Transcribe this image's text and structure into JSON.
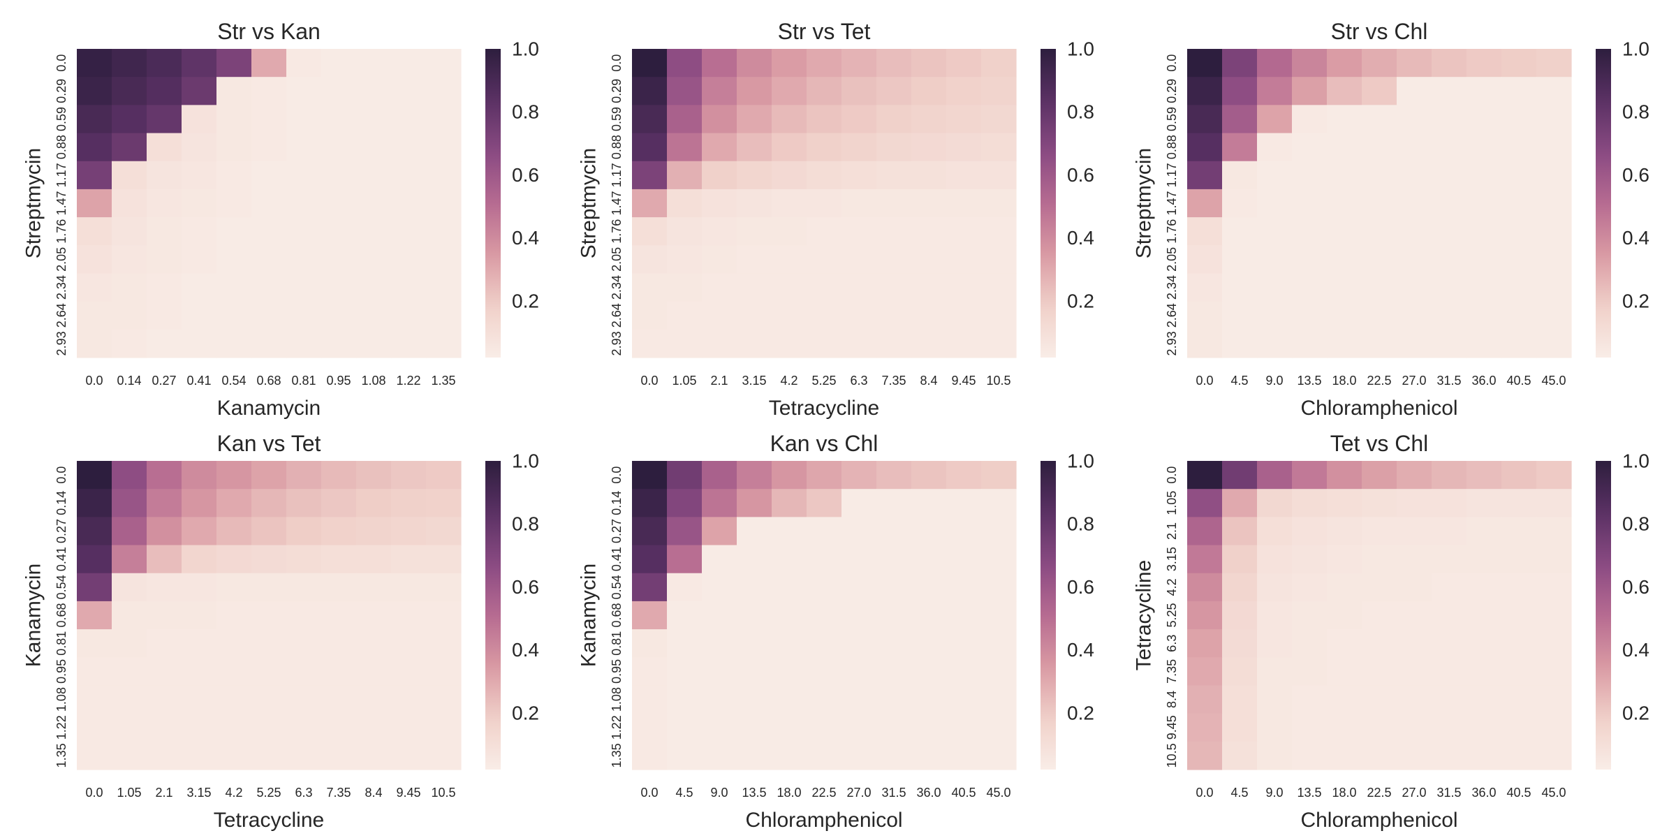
{
  "colorscale": {
    "stops": [
      "#f9ede7",
      "#f0d0c9",
      "#d99aa3",
      "#b66b91",
      "#8a4a82",
      "#5a3164",
      "#2d1e3e"
    ]
  },
  "chart_data": [
    {
      "type": "heatmap",
      "title": "Str vs Kan",
      "xlabel": "Kanamycin",
      "ylabel": "Streptmycin",
      "x_ticks": [
        "0.0",
        "0.14",
        "0.27",
        "0.41",
        "0.54",
        "0.68",
        "0.81",
        "0.95",
        "1.08",
        "1.22",
        "1.35"
      ],
      "y_ticks": [
        "0.0",
        "0.29",
        "0.59",
        "0.88",
        "1.17",
        "1.47",
        "1.76",
        "2.05",
        "2.34",
        "2.64",
        "2.93"
      ],
      "colorbar_ticks": [
        "1.0",
        "0.8",
        "0.6",
        "0.4",
        "0.2"
      ],
      "clim": [
        0.02,
        1.0
      ],
      "values": [
        [
          0.97,
          0.93,
          0.89,
          0.82,
          0.72,
          0.3,
          0.04,
          0.03,
          0.03,
          0.03,
          0.03
        ],
        [
          0.95,
          0.9,
          0.86,
          0.78,
          0.05,
          0.04,
          0.03,
          0.03,
          0.03,
          0.03,
          0.03
        ],
        [
          0.9,
          0.85,
          0.8,
          0.08,
          0.05,
          0.04,
          0.03,
          0.03,
          0.03,
          0.03,
          0.03
        ],
        [
          0.85,
          0.78,
          0.1,
          0.07,
          0.05,
          0.04,
          0.03,
          0.03,
          0.03,
          0.03,
          0.03
        ],
        [
          0.74,
          0.1,
          0.07,
          0.06,
          0.04,
          0.03,
          0.03,
          0.03,
          0.03,
          0.03,
          0.03
        ],
        [
          0.32,
          0.08,
          0.06,
          0.05,
          0.04,
          0.03,
          0.03,
          0.03,
          0.03,
          0.03,
          0.03
        ],
        [
          0.1,
          0.07,
          0.05,
          0.04,
          0.03,
          0.03,
          0.03,
          0.03,
          0.03,
          0.03,
          0.03
        ],
        [
          0.08,
          0.06,
          0.05,
          0.04,
          0.03,
          0.03,
          0.03,
          0.03,
          0.03,
          0.03,
          0.03
        ],
        [
          0.06,
          0.05,
          0.04,
          0.03,
          0.03,
          0.03,
          0.03,
          0.03,
          0.03,
          0.03,
          0.03
        ],
        [
          0.05,
          0.05,
          0.04,
          0.03,
          0.03,
          0.03,
          0.03,
          0.03,
          0.03,
          0.03,
          0.03
        ],
        [
          0.05,
          0.04,
          0.03,
          0.03,
          0.03,
          0.03,
          0.03,
          0.03,
          0.03,
          0.03,
          0.03
        ]
      ]
    },
    {
      "type": "heatmap",
      "title": "Str vs Tet",
      "xlabel": "Tetracycline",
      "ylabel": "Streptmycin",
      "x_ticks": [
        "0.0",
        "1.05",
        "2.1",
        "3.15",
        "4.2",
        "5.25",
        "6.3",
        "7.35",
        "8.4",
        "9.45",
        "10.5"
      ],
      "y_ticks": [
        "0.0",
        "0.29",
        "0.59",
        "0.88",
        "1.17",
        "1.47",
        "1.76",
        "2.05",
        "2.34",
        "2.64",
        "2.93"
      ],
      "colorbar_ticks": [
        "1.0",
        "0.8",
        "0.6",
        "0.4",
        "0.2"
      ],
      "clim": [
        0.02,
        1.0
      ],
      "values": [
        [
          1.0,
          0.66,
          0.5,
          0.4,
          0.34,
          0.3,
          0.27,
          0.24,
          0.22,
          0.2,
          0.18
        ],
        [
          0.95,
          0.62,
          0.44,
          0.35,
          0.3,
          0.26,
          0.23,
          0.21,
          0.19,
          0.17,
          0.16
        ],
        [
          0.9,
          0.56,
          0.38,
          0.3,
          0.25,
          0.22,
          0.2,
          0.18,
          0.16,
          0.15,
          0.14
        ],
        [
          0.85,
          0.48,
          0.3,
          0.24,
          0.2,
          0.18,
          0.16,
          0.14,
          0.13,
          0.12,
          0.11
        ],
        [
          0.72,
          0.28,
          0.18,
          0.15,
          0.13,
          0.11,
          0.1,
          0.09,
          0.09,
          0.08,
          0.08
        ],
        [
          0.3,
          0.1,
          0.08,
          0.07,
          0.06,
          0.06,
          0.05,
          0.05,
          0.05,
          0.05,
          0.05
        ],
        [
          0.1,
          0.07,
          0.06,
          0.05,
          0.05,
          0.04,
          0.04,
          0.04,
          0.04,
          0.04,
          0.04
        ],
        [
          0.07,
          0.06,
          0.05,
          0.04,
          0.04,
          0.04,
          0.04,
          0.04,
          0.04,
          0.04,
          0.04
        ],
        [
          0.05,
          0.05,
          0.04,
          0.04,
          0.04,
          0.04,
          0.04,
          0.04,
          0.04,
          0.04,
          0.04
        ],
        [
          0.05,
          0.04,
          0.04,
          0.04,
          0.04,
          0.04,
          0.04,
          0.04,
          0.04,
          0.04,
          0.04
        ],
        [
          0.04,
          0.04,
          0.04,
          0.04,
          0.04,
          0.04,
          0.04,
          0.04,
          0.04,
          0.04,
          0.04
        ]
      ]
    },
    {
      "type": "heatmap",
      "title": "Str vs Chl",
      "xlabel": "Chloramphenicol",
      "ylabel": "Streptmycin",
      "x_ticks": [
        "0.0",
        "4.5",
        "9.0",
        "13.5",
        "18.0",
        "22.5",
        "27.0",
        "31.5",
        "36.0",
        "40.5",
        "45.0"
      ],
      "y_ticks": [
        "0.0",
        "0.29",
        "0.59",
        "0.88",
        "1.17",
        "1.47",
        "1.76",
        "2.05",
        "2.34",
        "2.64",
        "2.93"
      ],
      "colorbar_ticks": [
        "1.0",
        "0.8",
        "0.6",
        "0.4",
        "0.2"
      ],
      "clim": [
        0.02,
        1.0
      ],
      "values": [
        [
          1.0,
          0.72,
          0.52,
          0.42,
          0.34,
          0.29,
          0.25,
          0.22,
          0.2,
          0.19,
          0.18
        ],
        [
          0.95,
          0.66,
          0.45,
          0.33,
          0.24,
          0.2,
          0.03,
          0.03,
          0.03,
          0.03,
          0.03
        ],
        [
          0.9,
          0.58,
          0.32,
          0.04,
          0.03,
          0.03,
          0.03,
          0.03,
          0.03,
          0.03,
          0.03
        ],
        [
          0.85,
          0.45,
          0.04,
          0.03,
          0.03,
          0.03,
          0.03,
          0.03,
          0.03,
          0.03,
          0.03
        ],
        [
          0.75,
          0.05,
          0.03,
          0.03,
          0.03,
          0.03,
          0.03,
          0.03,
          0.03,
          0.03,
          0.03
        ],
        [
          0.32,
          0.04,
          0.03,
          0.03,
          0.03,
          0.03,
          0.03,
          0.03,
          0.03,
          0.03,
          0.03
        ],
        [
          0.1,
          0.03,
          0.03,
          0.03,
          0.03,
          0.03,
          0.03,
          0.03,
          0.03,
          0.03,
          0.03
        ],
        [
          0.08,
          0.03,
          0.03,
          0.03,
          0.03,
          0.03,
          0.03,
          0.03,
          0.03,
          0.03,
          0.03
        ],
        [
          0.06,
          0.03,
          0.03,
          0.03,
          0.03,
          0.03,
          0.03,
          0.03,
          0.03,
          0.03,
          0.03
        ],
        [
          0.05,
          0.03,
          0.03,
          0.03,
          0.03,
          0.03,
          0.03,
          0.03,
          0.03,
          0.03,
          0.03
        ],
        [
          0.05,
          0.03,
          0.03,
          0.03,
          0.03,
          0.03,
          0.03,
          0.03,
          0.03,
          0.03,
          0.03
        ]
      ]
    },
    {
      "type": "heatmap",
      "title": "Kan vs Tet",
      "xlabel": "Tetracycline",
      "ylabel": "Kanamycin",
      "x_ticks": [
        "0.0",
        "1.05",
        "2.1",
        "3.15",
        "4.2",
        "5.25",
        "6.3",
        "7.35",
        "8.4",
        "9.45",
        "10.5"
      ],
      "y_ticks": [
        "0.0",
        "0.14",
        "0.27",
        "0.41",
        "0.54",
        "0.68",
        "0.81",
        "0.95",
        "1.08",
        "1.22",
        "1.35"
      ],
      "colorbar_ticks": [
        "1.0",
        "0.8",
        "0.6",
        "0.4",
        "0.2"
      ],
      "clim": [
        0.02,
        1.0
      ],
      "values": [
        [
          1.0,
          0.66,
          0.5,
          0.4,
          0.36,
          0.32,
          0.28,
          0.25,
          0.23,
          0.21,
          0.2
        ],
        [
          0.95,
          0.62,
          0.45,
          0.36,
          0.3,
          0.26,
          0.23,
          0.21,
          0.19,
          0.18,
          0.17
        ],
        [
          0.9,
          0.56,
          0.38,
          0.3,
          0.25,
          0.22,
          0.19,
          0.17,
          0.16,
          0.15,
          0.14
        ],
        [
          0.85,
          0.44,
          0.24,
          0.15,
          0.13,
          0.12,
          0.11,
          0.1,
          0.1,
          0.09,
          0.09
        ],
        [
          0.75,
          0.07,
          0.06,
          0.06,
          0.05,
          0.05,
          0.05,
          0.05,
          0.05,
          0.05,
          0.05
        ],
        [
          0.3,
          0.05,
          0.05,
          0.05,
          0.04,
          0.04,
          0.04,
          0.04,
          0.04,
          0.04,
          0.04
        ],
        [
          0.05,
          0.05,
          0.04,
          0.04,
          0.04,
          0.04,
          0.04,
          0.04,
          0.04,
          0.04,
          0.04
        ],
        [
          0.04,
          0.04,
          0.04,
          0.04,
          0.04,
          0.04,
          0.04,
          0.04,
          0.04,
          0.04,
          0.04
        ],
        [
          0.04,
          0.04,
          0.04,
          0.04,
          0.04,
          0.04,
          0.04,
          0.04,
          0.04,
          0.04,
          0.04
        ],
        [
          0.04,
          0.04,
          0.04,
          0.04,
          0.04,
          0.04,
          0.04,
          0.04,
          0.04,
          0.04,
          0.04
        ],
        [
          0.04,
          0.04,
          0.04,
          0.04,
          0.04,
          0.04,
          0.04,
          0.04,
          0.04,
          0.04,
          0.04
        ]
      ]
    },
    {
      "type": "heatmap",
      "title": "Kan vs Chl",
      "xlabel": "Chloramphenicol",
      "ylabel": "Kanamycin",
      "x_ticks": [
        "0.0",
        "4.5",
        "9.0",
        "13.5",
        "18.0",
        "22.5",
        "27.0",
        "31.5",
        "36.0",
        "40.5",
        "45.0"
      ],
      "y_ticks": [
        "0.0",
        "0.14",
        "0.27",
        "0.41",
        "0.54",
        "0.68",
        "0.81",
        "0.95",
        "1.08",
        "1.22",
        "1.35"
      ],
      "colorbar_ticks": [
        "1.0",
        "0.8",
        "0.6",
        "0.4",
        "0.2"
      ],
      "clim": [
        0.02,
        1.0
      ],
      "values": [
        [
          1.0,
          0.76,
          0.56,
          0.44,
          0.36,
          0.31,
          0.27,
          0.24,
          0.22,
          0.2,
          0.19
        ],
        [
          0.95,
          0.7,
          0.48,
          0.36,
          0.26,
          0.21,
          0.03,
          0.03,
          0.03,
          0.03,
          0.03
        ],
        [
          0.9,
          0.62,
          0.32,
          0.03,
          0.03,
          0.03,
          0.03,
          0.03,
          0.03,
          0.03,
          0.03
        ],
        [
          0.85,
          0.5,
          0.03,
          0.03,
          0.03,
          0.03,
          0.03,
          0.03,
          0.03,
          0.03,
          0.03
        ],
        [
          0.75,
          0.04,
          0.03,
          0.03,
          0.03,
          0.03,
          0.03,
          0.03,
          0.03,
          0.03,
          0.03
        ],
        [
          0.3,
          0.03,
          0.03,
          0.03,
          0.03,
          0.03,
          0.03,
          0.03,
          0.03,
          0.03,
          0.03
        ],
        [
          0.05,
          0.03,
          0.03,
          0.03,
          0.03,
          0.03,
          0.03,
          0.03,
          0.03,
          0.03,
          0.03
        ],
        [
          0.04,
          0.03,
          0.03,
          0.03,
          0.03,
          0.03,
          0.03,
          0.03,
          0.03,
          0.03,
          0.03
        ],
        [
          0.04,
          0.03,
          0.03,
          0.03,
          0.03,
          0.03,
          0.03,
          0.03,
          0.03,
          0.03,
          0.03
        ],
        [
          0.04,
          0.03,
          0.03,
          0.03,
          0.03,
          0.03,
          0.03,
          0.03,
          0.03,
          0.03,
          0.03
        ],
        [
          0.04,
          0.03,
          0.03,
          0.03,
          0.03,
          0.03,
          0.03,
          0.03,
          0.03,
          0.03,
          0.03
        ]
      ]
    },
    {
      "type": "heatmap",
      "title": "Tet vs Chl",
      "xlabel": "Chloramphenicol",
      "ylabel": "Tetracycline",
      "x_ticks": [
        "0.0",
        "4.5",
        "9.0",
        "13.5",
        "18.0",
        "22.5",
        "27.0",
        "31.5",
        "36.0",
        "40.5",
        "45.0"
      ],
      "y_ticks": [
        "0.0",
        "1.05",
        "2.1",
        "3.15",
        "4.2",
        "5.25",
        "6.3",
        "7.35",
        "8.4",
        "9.45",
        "10.5"
      ],
      "colorbar_ticks": [
        "1.0",
        "0.8",
        "0.6",
        "0.4",
        "0.2"
      ],
      "clim": [
        0.02,
        1.0
      ],
      "values": [
        [
          1.0,
          0.76,
          0.56,
          0.46,
          0.38,
          0.33,
          0.29,
          0.26,
          0.24,
          0.22,
          0.2
        ],
        [
          0.65,
          0.3,
          0.14,
          0.11,
          0.1,
          0.09,
          0.08,
          0.08,
          0.07,
          0.07,
          0.07
        ],
        [
          0.54,
          0.22,
          0.1,
          0.08,
          0.07,
          0.06,
          0.06,
          0.06,
          0.05,
          0.05,
          0.05
        ],
        [
          0.46,
          0.18,
          0.08,
          0.07,
          0.06,
          0.05,
          0.05,
          0.05,
          0.05,
          0.05,
          0.05
        ],
        [
          0.4,
          0.15,
          0.07,
          0.06,
          0.05,
          0.05,
          0.05,
          0.04,
          0.04,
          0.04,
          0.04
        ],
        [
          0.36,
          0.13,
          0.06,
          0.05,
          0.05,
          0.04,
          0.04,
          0.04,
          0.04,
          0.04,
          0.04
        ],
        [
          0.32,
          0.12,
          0.06,
          0.05,
          0.04,
          0.04,
          0.04,
          0.04,
          0.04,
          0.04,
          0.04
        ],
        [
          0.3,
          0.11,
          0.05,
          0.05,
          0.04,
          0.04,
          0.04,
          0.04,
          0.04,
          0.04,
          0.04
        ],
        [
          0.28,
          0.1,
          0.05,
          0.04,
          0.04,
          0.04,
          0.04,
          0.04,
          0.04,
          0.04,
          0.04
        ],
        [
          0.27,
          0.1,
          0.05,
          0.04,
          0.04,
          0.04,
          0.04,
          0.04,
          0.04,
          0.04,
          0.04
        ],
        [
          0.26,
          0.09,
          0.05,
          0.04,
          0.04,
          0.04,
          0.04,
          0.04,
          0.04,
          0.04,
          0.04
        ]
      ]
    }
  ]
}
